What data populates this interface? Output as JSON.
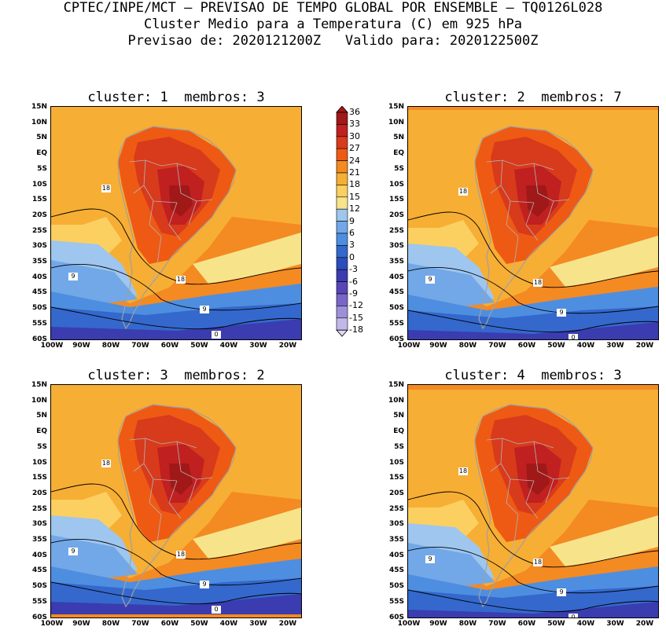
{
  "header": {
    "line1": "CPTEC/INPE/MCT — PREVISAO DE TEMPO GLOBAL POR ENSEMBLE — TQ0126L028",
    "line2": "Cluster Medio para a Temperatura (C) em 925 hPa",
    "line3": "Previsao de: 2020121200Z   Valido para: 2020122500Z"
  },
  "panels": [
    {
      "title": "cluster: 1  membros: 3"
    },
    {
      "title": "cluster: 2  membros: 7"
    },
    {
      "title": "cluster: 3  membros: 2"
    },
    {
      "title": "cluster: 4  membros: 3"
    }
  ],
  "map": {
    "lat_labels": [
      "15N",
      "10N",
      "5N",
      "EQ",
      "5S",
      "10S",
      "15S",
      "20S",
      "25S",
      "30S",
      "35S",
      "40S",
      "45S",
      "50S",
      "55S",
      "60S"
    ],
    "lon_labels": [
      "100W",
      "90W",
      "80W",
      "70W",
      "60W",
      "50W",
      "40W",
      "30W",
      "20W"
    ],
    "contour_labels": [
      "18",
      "9",
      "0"
    ]
  },
  "colorbar": {
    "labels": [
      "36",
      "33",
      "30",
      "27",
      "24",
      "21",
      "18",
      "15",
      "12",
      "9",
      "6",
      "3",
      "0",
      "-3",
      "-6",
      "-9",
      "-12",
      "-15",
      "-18"
    ],
    "colors": [
      "#a01818",
      "#c02020",
      "#d83a1c",
      "#ee5a14",
      "#f48a22",
      "#f7ae34",
      "#fbd060",
      "#f7e48a",
      "#9ec6ee",
      "#72a8e8",
      "#4e8ee0",
      "#3468cc",
      "#2a4cbc",
      "#3a3cb0",
      "#5846b8",
      "#7a66c8",
      "#9e90d8",
      "#c2b8e8",
      "#ded8f4"
    ]
  }
}
